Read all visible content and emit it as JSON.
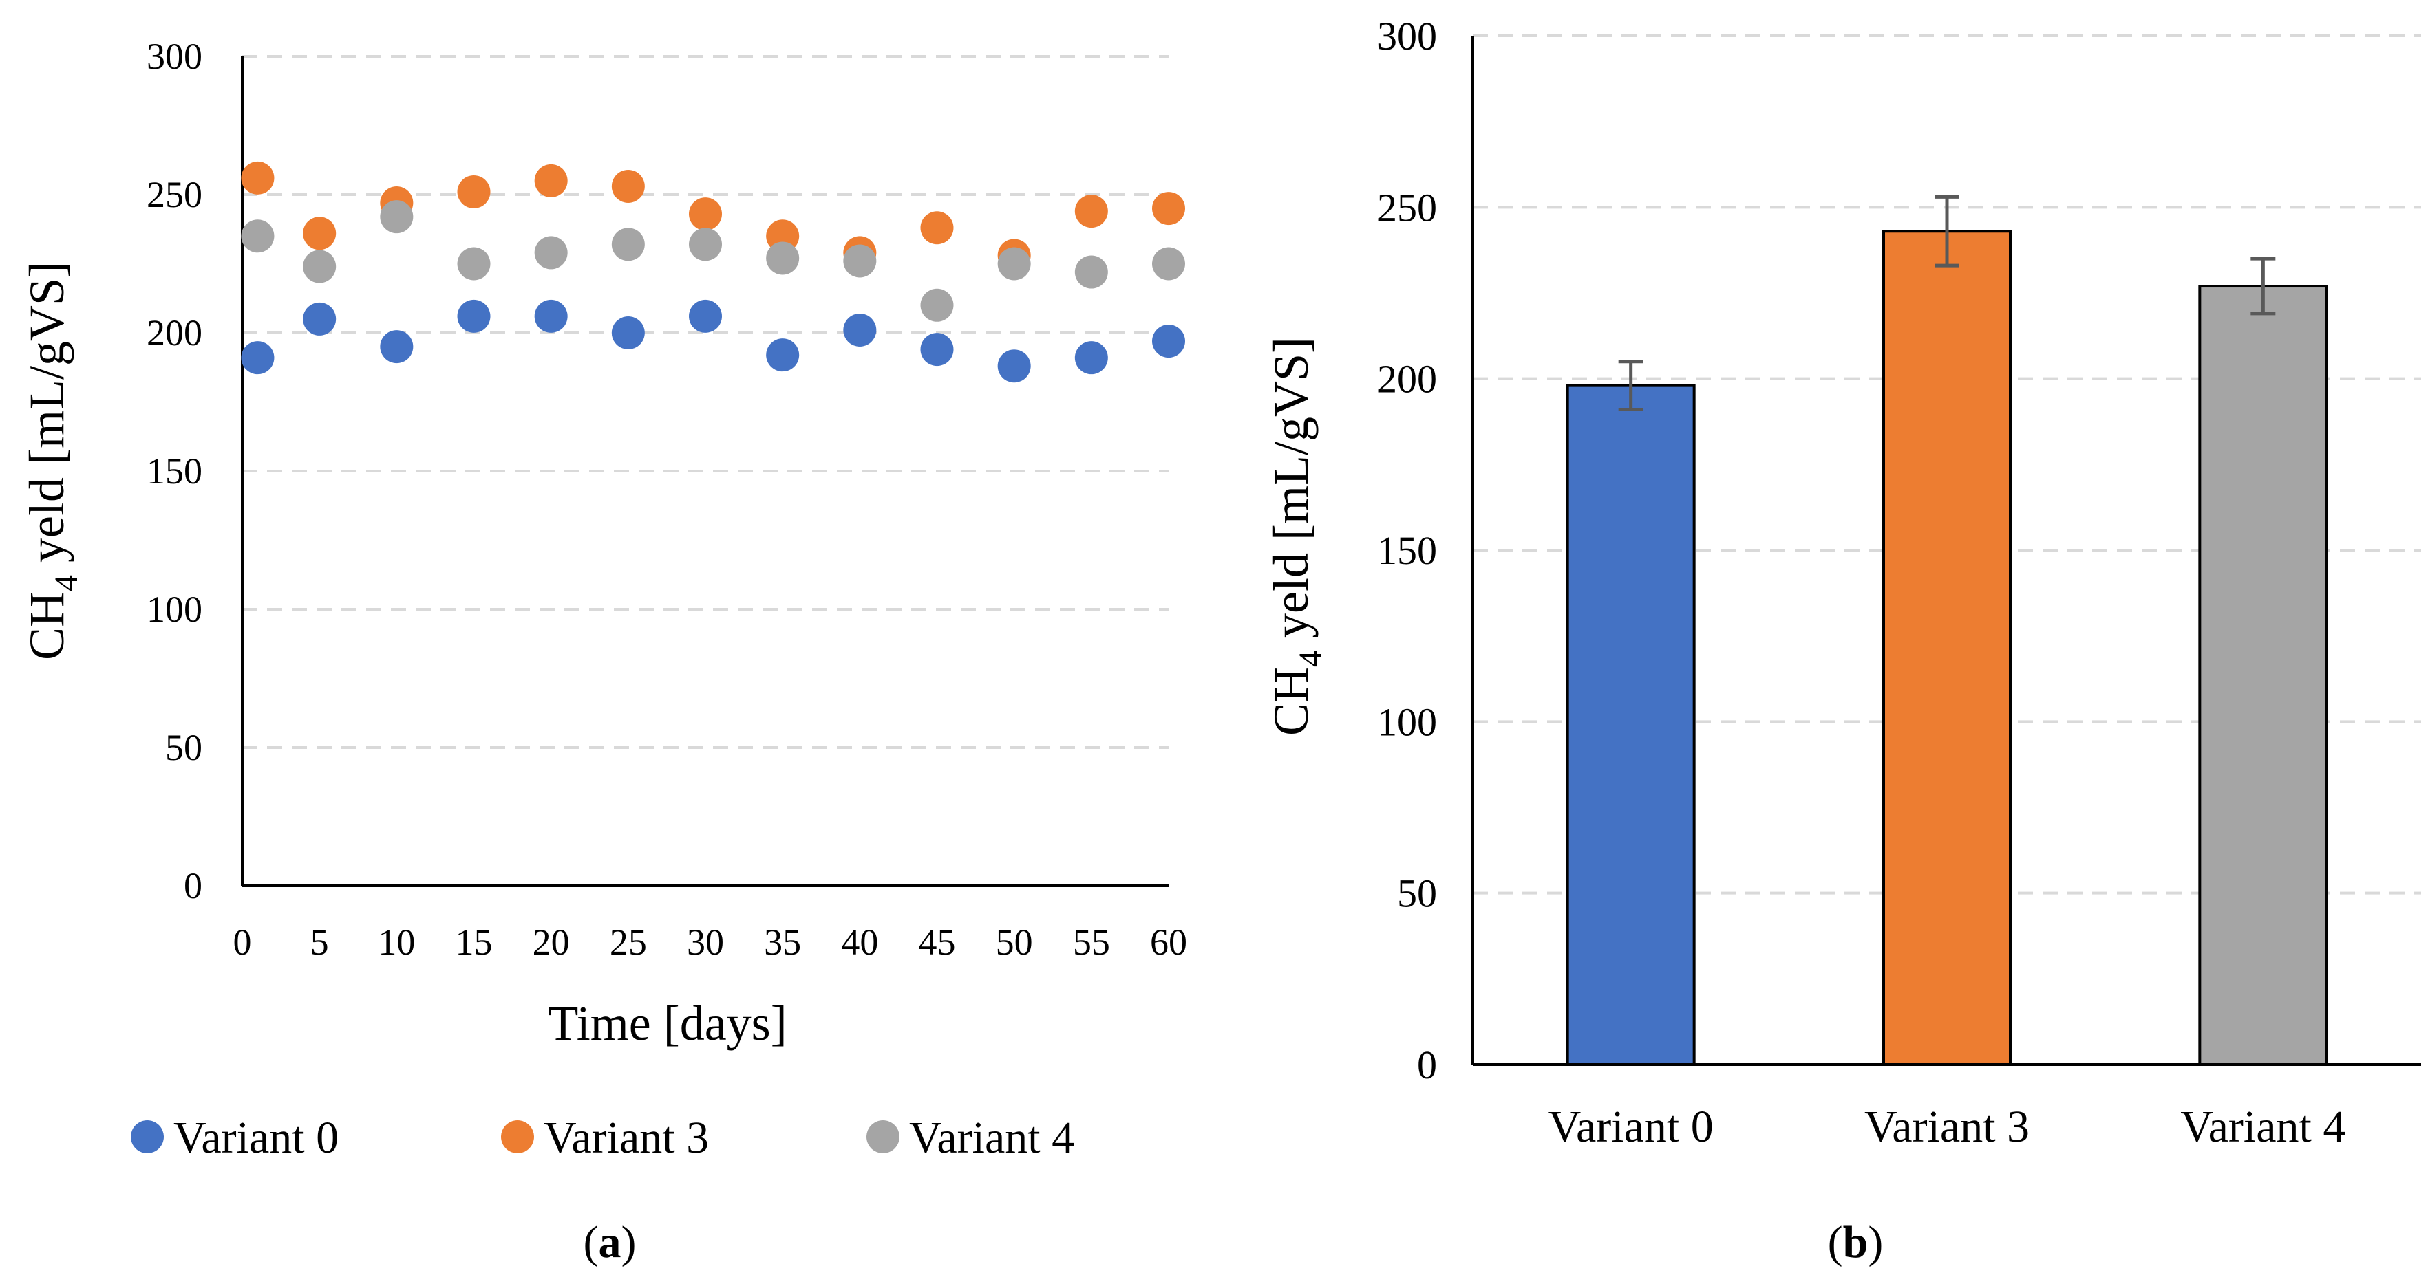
{
  "chart_data": [
    {
      "type": "scatter",
      "panel_label": "a",
      "xlabel": "Time [days]",
      "ylabel_main": "CH",
      "ylabel_sub": "4",
      "ylabel_rest": " yeld  [mL/gVS]",
      "xlim": [
        0,
        60
      ],
      "ylim": [
        0,
        300
      ],
      "xticks": [
        0,
        5,
        10,
        15,
        20,
        25,
        30,
        35,
        40,
        45,
        50,
        55,
        60
      ],
      "yticks": [
        0,
        50,
        100,
        150,
        200,
        250,
        300
      ],
      "grid": "horizontal dashed",
      "legend_position": "bottom",
      "x": [
        1,
        5,
        10,
        15,
        20,
        25,
        30,
        35,
        40,
        45,
        50,
        55,
        60
      ],
      "series": [
        {
          "name": "Variant 0",
          "color": "#4472C4",
          "values": [
            191,
            205,
            195,
            206,
            206,
            200,
            206,
            192,
            201,
            194,
            188,
            191,
            197
          ]
        },
        {
          "name": "Variant 3",
          "color": "#ED7D31",
          "values": [
            256,
            236,
            247,
            251,
            255,
            253,
            243,
            235,
            229,
            238,
            228,
            244,
            245
          ]
        },
        {
          "name": "Variant 4",
          "color": "#A5A5A5",
          "values": [
            235,
            224,
            242,
            225,
            229,
            232,
            232,
            227,
            226,
            210,
            225,
            222,
            225
          ]
        }
      ]
    },
    {
      "type": "bar",
      "panel_label": "b",
      "ylabel_main": "CH",
      "ylabel_sub": "4",
      "ylabel_rest": " yeld [mL/gVS]",
      "ylim": [
        0,
        300
      ],
      "yticks": [
        0,
        50,
        100,
        150,
        200,
        250,
        300
      ],
      "grid": "horizontal dashed",
      "categories": [
        "Variant 0",
        "Variant 3",
        "Variant 4"
      ],
      "values": [
        198,
        243,
        227
      ],
      "errors": [
        7,
        10,
        8
      ],
      "colors": [
        "#4472C4",
        "#ED7D31",
        "#A5A5A5"
      ],
      "error_bar_color": "#595959"
    }
  ]
}
